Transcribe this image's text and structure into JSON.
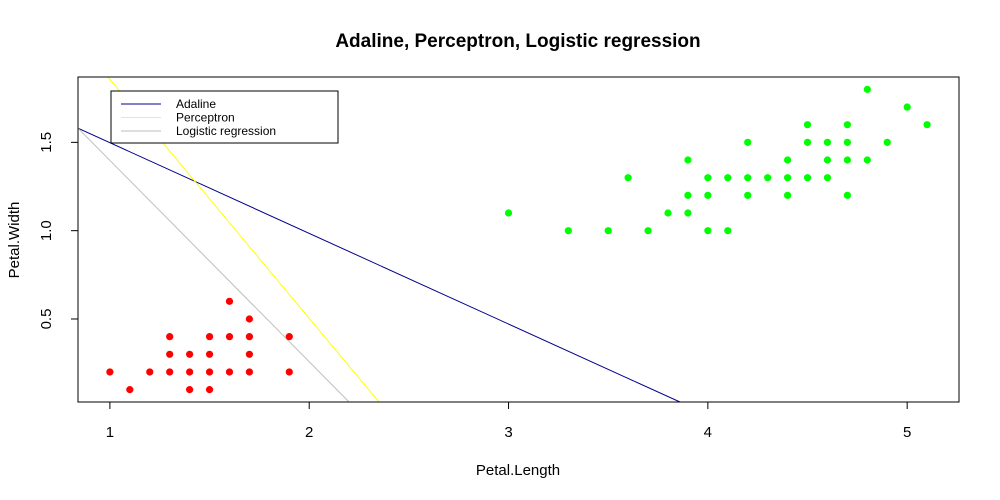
{
  "chart_data": {
    "type": "scatter",
    "title": "Adaline, Perceptron, Logistic regression",
    "xlabel": "Petal.Length",
    "ylabel": "Petal.Width",
    "xlim": [
      0.84,
      5.26
    ],
    "ylim": [
      0.03,
      1.87
    ],
    "x_ticks": [
      1,
      2,
      3,
      4,
      5
    ],
    "y_ticks": [
      0.5,
      1.0,
      1.5
    ],
    "x_tick_labels": [
      "1",
      "2",
      "3",
      "4",
      "5"
    ],
    "y_tick_labels": [
      "0.5",
      "1.0",
      "1.5"
    ],
    "grid": false,
    "legend_position": "top-left",
    "series": [
      {
        "kind": "points",
        "color": "#ff0000",
        "points": [
          [
            1.0,
            0.2
          ],
          [
            1.1,
            0.1
          ],
          [
            1.2,
            0.2
          ],
          [
            1.3,
            0.2
          ],
          [
            1.3,
            0.3
          ],
          [
            1.3,
            0.4
          ],
          [
            1.4,
            0.1
          ],
          [
            1.4,
            0.2
          ],
          [
            1.4,
            0.3
          ],
          [
            1.5,
            0.1
          ],
          [
            1.5,
            0.2
          ],
          [
            1.5,
            0.3
          ],
          [
            1.5,
            0.4
          ],
          [
            1.6,
            0.2
          ],
          [
            1.6,
            0.4
          ],
          [
            1.6,
            0.6
          ],
          [
            1.7,
            0.2
          ],
          [
            1.7,
            0.3
          ],
          [
            1.7,
            0.4
          ],
          [
            1.7,
            0.5
          ],
          [
            1.9,
            0.2
          ],
          [
            1.9,
            0.4
          ]
        ]
      },
      {
        "kind": "points",
        "color": "#00ff00",
        "points": [
          [
            3.0,
            1.1
          ],
          [
            3.3,
            1.0
          ],
          [
            3.5,
            1.0
          ],
          [
            3.6,
            1.3
          ],
          [
            3.7,
            1.0
          ],
          [
            3.8,
            1.1
          ],
          [
            3.9,
            1.1
          ],
          [
            3.9,
            1.2
          ],
          [
            3.9,
            1.4
          ],
          [
            4.0,
            1.0
          ],
          [
            4.0,
            1.2
          ],
          [
            4.0,
            1.3
          ],
          [
            4.1,
            1.0
          ],
          [
            4.1,
            1.3
          ],
          [
            4.2,
            1.2
          ],
          [
            4.2,
            1.3
          ],
          [
            4.2,
            1.5
          ],
          [
            4.3,
            1.3
          ],
          [
            4.4,
            1.2
          ],
          [
            4.4,
            1.3
          ],
          [
            4.4,
            1.4
          ],
          [
            4.5,
            1.3
          ],
          [
            4.5,
            1.5
          ],
          [
            4.5,
            1.6
          ],
          [
            4.6,
            1.3
          ],
          [
            4.6,
            1.4
          ],
          [
            4.6,
            1.5
          ],
          [
            4.7,
            1.2
          ],
          [
            4.7,
            1.4
          ],
          [
            4.7,
            1.5
          ],
          [
            4.7,
            1.6
          ],
          [
            4.8,
            1.4
          ],
          [
            4.8,
            1.8
          ],
          [
            4.9,
            1.5
          ],
          [
            5.0,
            1.7
          ],
          [
            5.1,
            1.6
          ]
        ]
      },
      {
        "kind": "line",
        "name": "Adaline",
        "color": "#00008b",
        "line": [
          [
            0.84,
            1.58
          ],
          [
            3.86,
            0.03
          ]
        ]
      },
      {
        "kind": "line",
        "name": "Perceptron",
        "color": "#ffff00",
        "line": [
          [
            0.99,
            1.87
          ],
          [
            2.35,
            0.03
          ]
        ]
      },
      {
        "kind": "line",
        "name": "Logistic regression",
        "color": "#bebebe",
        "line": [
          [
            0.84,
            1.58
          ],
          [
            2.2,
            0.03
          ]
        ]
      }
    ]
  }
}
